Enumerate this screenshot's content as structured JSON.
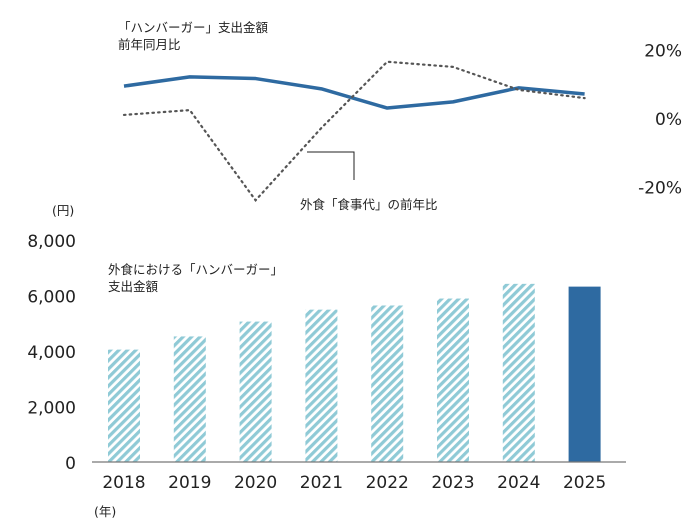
{
  "chart_data": [
    {
      "type": "line",
      "title": "「ハンバーガー」支出金額",
      "subtitle": "前年同月比",
      "categories": [
        "2018",
        "2019",
        "2020",
        "2021",
        "2022",
        "2023",
        "2024",
        "2025"
      ],
      "series": [
        {
          "name": "「ハンバーガー」支出金額 前年同月比",
          "style": "solid",
          "color": "#2e6aa1",
          "values": [
            9.3,
            12.0,
            11.5,
            8.5,
            2.9,
            4.7,
            8.8,
            7.0
          ]
        },
        {
          "name": "外食「食事代」の前年比",
          "style": "dotted",
          "color": "#555555",
          "values": [
            0.9,
            2.3,
            -24.0,
            -2.9,
            16.4,
            14.9,
            8.2,
            5.8
          ]
        }
      ],
      "yticks": [
        "20%",
        "0%",
        "-20%"
      ],
      "ytick_values": [
        20,
        0,
        -20
      ],
      "ylim": [
        -24,
        24
      ],
      "annotation": "外食「食事代」の前年比"
    },
    {
      "type": "bar",
      "title": "外食における「ハンバーガー」",
      "title2": "支出金額",
      "categories": [
        "2018",
        "2019",
        "2020",
        "2021",
        "2022",
        "2023",
        "2024",
        "2025"
      ],
      "values": [
        4050,
        4525,
        5060,
        5490,
        5640,
        5890,
        6420,
        6320
      ],
      "highlight_index": 7,
      "colors": {
        "hatch": "#8fcad6",
        "highlight": "#2e6aa1"
      },
      "yticks": [
        "0",
        "2,000",
        "4,000",
        "6,000",
        "8,000"
      ],
      "ytick_values": [
        0,
        2000,
        4000,
        6000,
        8000
      ],
      "ylim": [
        0,
        8000
      ],
      "ylabel": "(円)",
      "xlabel": "(年)"
    }
  ]
}
